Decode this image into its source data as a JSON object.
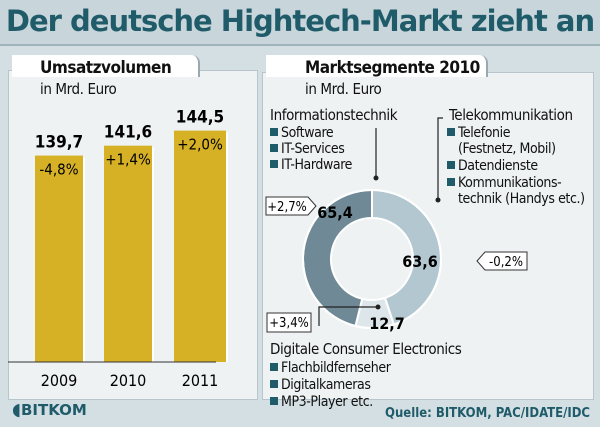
{
  "title": "Der deutsche Hightech-Markt zieht an",
  "colors": {
    "accent": "#1f5b69",
    "bar": "#d6b126",
    "it": "#6f8a96",
    "tk": "#b3c7d1",
    "ce": "#dde7eb"
  },
  "chart_data": [
    {
      "type": "bar",
      "title": "Umsatzvolumen",
      "subtitle": "in Mrd. Euro",
      "categories": [
        "2009",
        "2010",
        "2011"
      ],
      "values": [
        139.7,
        141.6,
        144.5
      ],
      "value_labels": [
        "139,7",
        "141,6",
        "144,5"
      ],
      "change_labels": [
        "-4,8%",
        "+1,4%",
        "+2,0%"
      ],
      "ylim": [
        100,
        150
      ]
    },
    {
      "type": "pie",
      "style": "donut",
      "title": "Marktsegmente 2010",
      "subtitle": "in Mrd. Euro",
      "segments": [
        {
          "name": "Telekommunikation",
          "value": 63.6,
          "value_label": "63,6",
          "change": "-0,2%",
          "items": [
            "Telefonie",
            "(Festnetz, Mobil)",
            "Datendienste",
            "Kommunikations-",
            "technik (Handys etc.)"
          ]
        },
        {
          "name": "Digitale Consumer Electronics",
          "value": 12.7,
          "value_label": "12,7",
          "change": "+3,4%",
          "items": [
            "Flachbildfernseher",
            "Digitalkameras",
            "MP3-Player etc."
          ]
        },
        {
          "name": "Informationstechnik",
          "value": 65.4,
          "value_label": "65,4",
          "change": "+2,7%",
          "items": [
            "Software",
            "IT-Services",
            "IT-Hardware"
          ]
        }
      ]
    }
  ],
  "logo": "BITKOM",
  "source": "Quelle: BITKOM, PAC/IDATE/IDC"
}
